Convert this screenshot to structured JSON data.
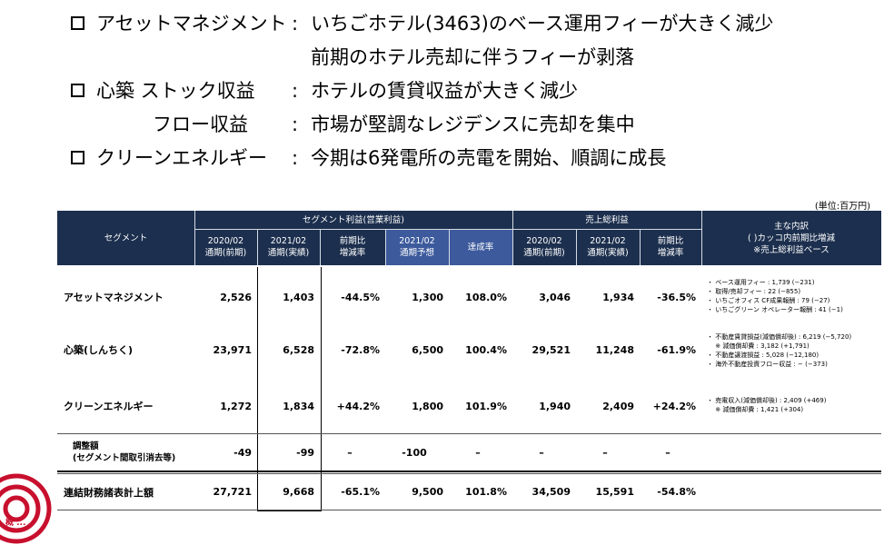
{
  "bullets": [
    {
      "label": "アセットマネジメント",
      "colon": ":",
      "text": "いちごホテル(3463)のベース運用フィーが大きく減少"
    },
    {
      "label": "",
      "colon": "",
      "text": "前期のホテル売却に伴うフィーが剥落"
    },
    {
      "label": "心築 ストック収益",
      "colon": ":",
      "text": "ホテルの賃貸収益が大きく減少"
    },
    {
      "label": "フロー収益",
      "colon": ":",
      "text": "市場が堅調なレジデンスに売却を集中"
    },
    {
      "label": "クリーンエネルギー",
      "colon": ":",
      "text": "今期は6発電所の売電を開始、順調に成長"
    }
  ],
  "unit_note": "(単位:百万円)",
  "table": {
    "headers": {
      "segment": "セグメント",
      "op_profit_group": "セグメント利益(営業利益)",
      "gross_profit_group": "売上総利益",
      "breakdown": "主な内訳\n( )カッコ内前期比増減\n※売上総利益ベース",
      "cols": [
        "2020/02\n通期(前期)",
        "2021/02\n通期(実績)",
        "前期比\n増減率",
        "2021/02\n通期予想",
        "達成率",
        "2020/02\n通期(前期)",
        "2021/02\n通期(実績)",
        "前期比\n増減率"
      ]
    },
    "rows": [
      {
        "name": "アセットマネジメント",
        "values": [
          "2,526",
          "1,403",
          "-44.5%",
          "1,300",
          "108.0%",
          "3,046",
          "1,934",
          "-36.5%"
        ],
        "notes": [
          "・ ベース運用フィー : 1,739 (−231)",
          "・ 取得/売却フィー : 22 (−855)",
          "・ いちごオフィス CF成果報酬 : 79 (−27)",
          "・ いちごグリーン オペレーター報酬 : 41 (−1)"
        ]
      },
      {
        "name": "心築(しんちく)",
        "values": [
          "23,971",
          "6,528",
          "-72.8%",
          "6,500",
          "100.4%",
          "29,521",
          "11,248",
          "-61.9%"
        ],
        "notes": [
          "・ 不動産賃貸損益(減価償却後) : 6,219 (−5,720)",
          "　 ※ 減価償却費 : 3,182 (+1,791)",
          "・ 不動産譲渡損益 : 5,028 (−12,180)",
          "・ 海外不動産投資フロー収益 : − (−373)"
        ]
      },
      {
        "name": "クリーンエネルギー",
        "values": [
          "1,272",
          "1,834",
          "+44.2%",
          "1,800",
          "101.9%",
          "1,940",
          "2,409",
          "+24.2%"
        ],
        "notes": [
          "・ 売電収入(減価償却後) : 2,409 (+469)",
          "　 ※ 減価償却費 : 1,421 (+304)"
        ]
      },
      {
        "name": "調整額\n(セグメント間取引消去等)",
        "values": [
          "-49",
          "-99",
          "–",
          "-100",
          "–",
          "–",
          "–",
          "–"
        ],
        "notes": []
      },
      {
        "name": "連結財務諸表計上額",
        "values": [
          "27,721",
          "9,668",
          "-65.1%",
          "9,500",
          "101.8%",
          "34,509",
          "15,591",
          "-54.8%"
        ],
        "notes": []
      }
    ]
  },
  "logo_text": "概 ..."
}
